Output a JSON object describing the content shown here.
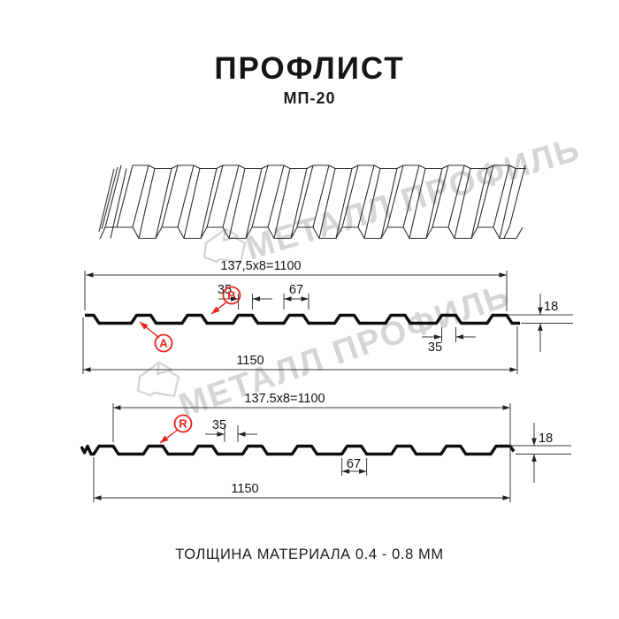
{
  "header": {
    "title": "ПРОФЛИСТ",
    "subtitle": "МП-20"
  },
  "watermark": {
    "text": "МЕТАЛЛ ПРОФИЛЬ",
    "logo": "metall-profil-logo"
  },
  "profile_top": {
    "pitch_dim": "137,5x8=1100",
    "crest_top_width": "35",
    "crest_base_width": "67",
    "height": "18",
    "underside_width": "35",
    "total_width": "1150",
    "label_a": "A",
    "label_b": "B"
  },
  "profile_bottom": {
    "pitch_dim": "137.5x8=1100",
    "crest_top_width": "35",
    "crest_base_width": "67",
    "height": "18",
    "total_width": "1150",
    "label_r": "R"
  },
  "footer": {
    "thickness": "ТОЛЩИНА МАТЕРИАЛА 0.4 - 0.8 ММ"
  },
  "colors": {
    "accent_red": "#e8231d",
    "line": "#141414",
    "watermark": "#a8a8a8"
  }
}
